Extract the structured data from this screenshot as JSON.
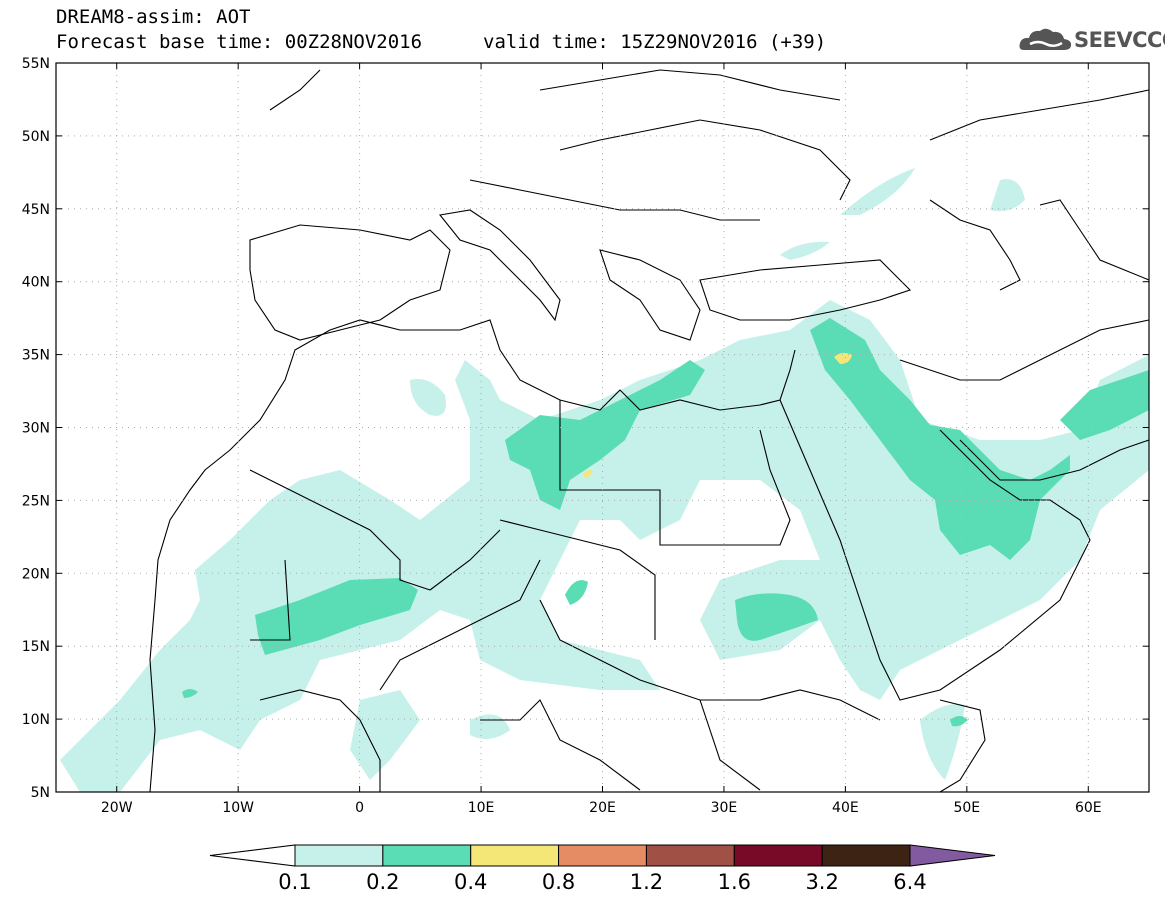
{
  "header": {
    "title": "DREAM8-assim: AOT",
    "base_time": "Forecast base time: 00Z28NOV2016",
    "valid_time": "valid time: 15Z29NOV2016 (+39)",
    "logo_text": "SEEVCCC"
  },
  "map": {
    "lon_range": [
      -25,
      65
    ],
    "lat_range": [
      5,
      55
    ],
    "lat_ticks": [
      {
        "value": 55,
        "label": "55N"
      },
      {
        "value": 50,
        "label": "50N"
      },
      {
        "value": 45,
        "label": "45N"
      },
      {
        "value": 40,
        "label": "40N"
      },
      {
        "value": 35,
        "label": "35N"
      },
      {
        "value": 30,
        "label": "30N"
      },
      {
        "value": 25,
        "label": "25N"
      },
      {
        "value": 20,
        "label": "20N"
      },
      {
        "value": 15,
        "label": "15N"
      },
      {
        "value": 10,
        "label": "10N"
      },
      {
        "value": 5,
        "label": "5N"
      }
    ],
    "lon_ticks": [
      {
        "value": -20,
        "label": "20W"
      },
      {
        "value": -10,
        "label": "10W"
      },
      {
        "value": 0,
        "label": "0"
      },
      {
        "value": 10,
        "label": "10E"
      },
      {
        "value": 20,
        "label": "20E"
      },
      {
        "value": 30,
        "label": "30E"
      },
      {
        "value": 40,
        "label": "40E"
      },
      {
        "value": 50,
        "label": "50E"
      },
      {
        "value": 60,
        "label": "60E"
      }
    ],
    "grid": true
  },
  "colorbar": {
    "levels": [
      "0.1",
      "0.2",
      "0.4",
      "0.8",
      "1.2",
      "1.6",
      "3.2",
      "6.4"
    ],
    "colors": [
      "#ffffff",
      "#c6f0ea",
      "#5adcb4",
      "#f5e678",
      "#e68c64",
      "#a05044",
      "#780a28",
      "#3c2314",
      "#825aa0"
    ]
  },
  "colors": {
    "level1": "#c6f0ea",
    "level2": "#5adcb4",
    "level3": "#f5e678",
    "border": "#000000"
  }
}
